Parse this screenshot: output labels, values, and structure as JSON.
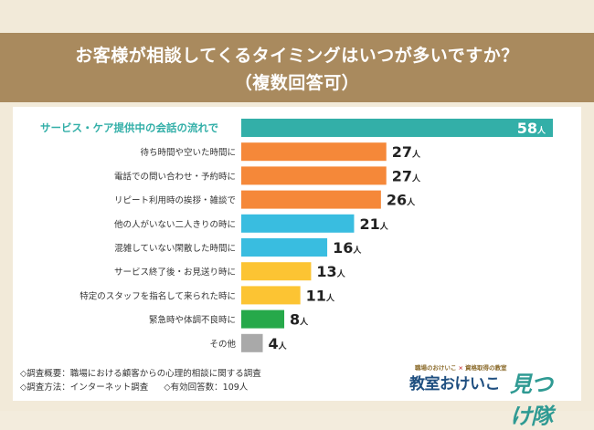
{
  "header": {
    "title_line1": "お客様が相談してくるタイミングはいつが多いですか？",
    "title_line2": "（複数回答可）"
  },
  "chart_data": {
    "type": "bar",
    "orientation": "horizontal",
    "unit": "人",
    "categories": [
      "サービス・ケア提供中の会話の流れで",
      "待ち時間や空いた時間に",
      "電話での問い合わせ・予約時に",
      "リピート利用時の挨拶・雑談で",
      "他の人がいない二人きりの時に",
      "混雑していない閑散した時間に",
      "サービス終了後・お見送り時に",
      "特定のスタッフを指名して来られた時に",
      "緊急時や体調不良時に",
      "その他"
    ],
    "values": [
      58,
      27,
      27,
      26,
      21,
      16,
      13,
      11,
      8,
      4
    ],
    "colors": [
      "#33afa8",
      "#f58839",
      "#f58839",
      "#f58839",
      "#39bde0",
      "#39bde0",
      "#fcc433",
      "#fcc433",
      "#26a94a",
      "#a9a9a9"
    ],
    "highlight_color": "#33afa8",
    "label_color": "#333333",
    "xlim": [
      0,
      58
    ]
  },
  "notes": {
    "survey_overview": "◇調査概要：職場における顧客からの心理的相談に関する調査",
    "survey_method": "◇調査方法：インターネット調査",
    "valid_responses": "◇有効回答数：109人"
  },
  "logo": {
    "tagline_left": "職場のおけいこ",
    "tagline_sep": "×",
    "tagline_right": "資格取得の教室",
    "name_part1": "教室おけいこ",
    "name_part2": "見つけ隊"
  }
}
